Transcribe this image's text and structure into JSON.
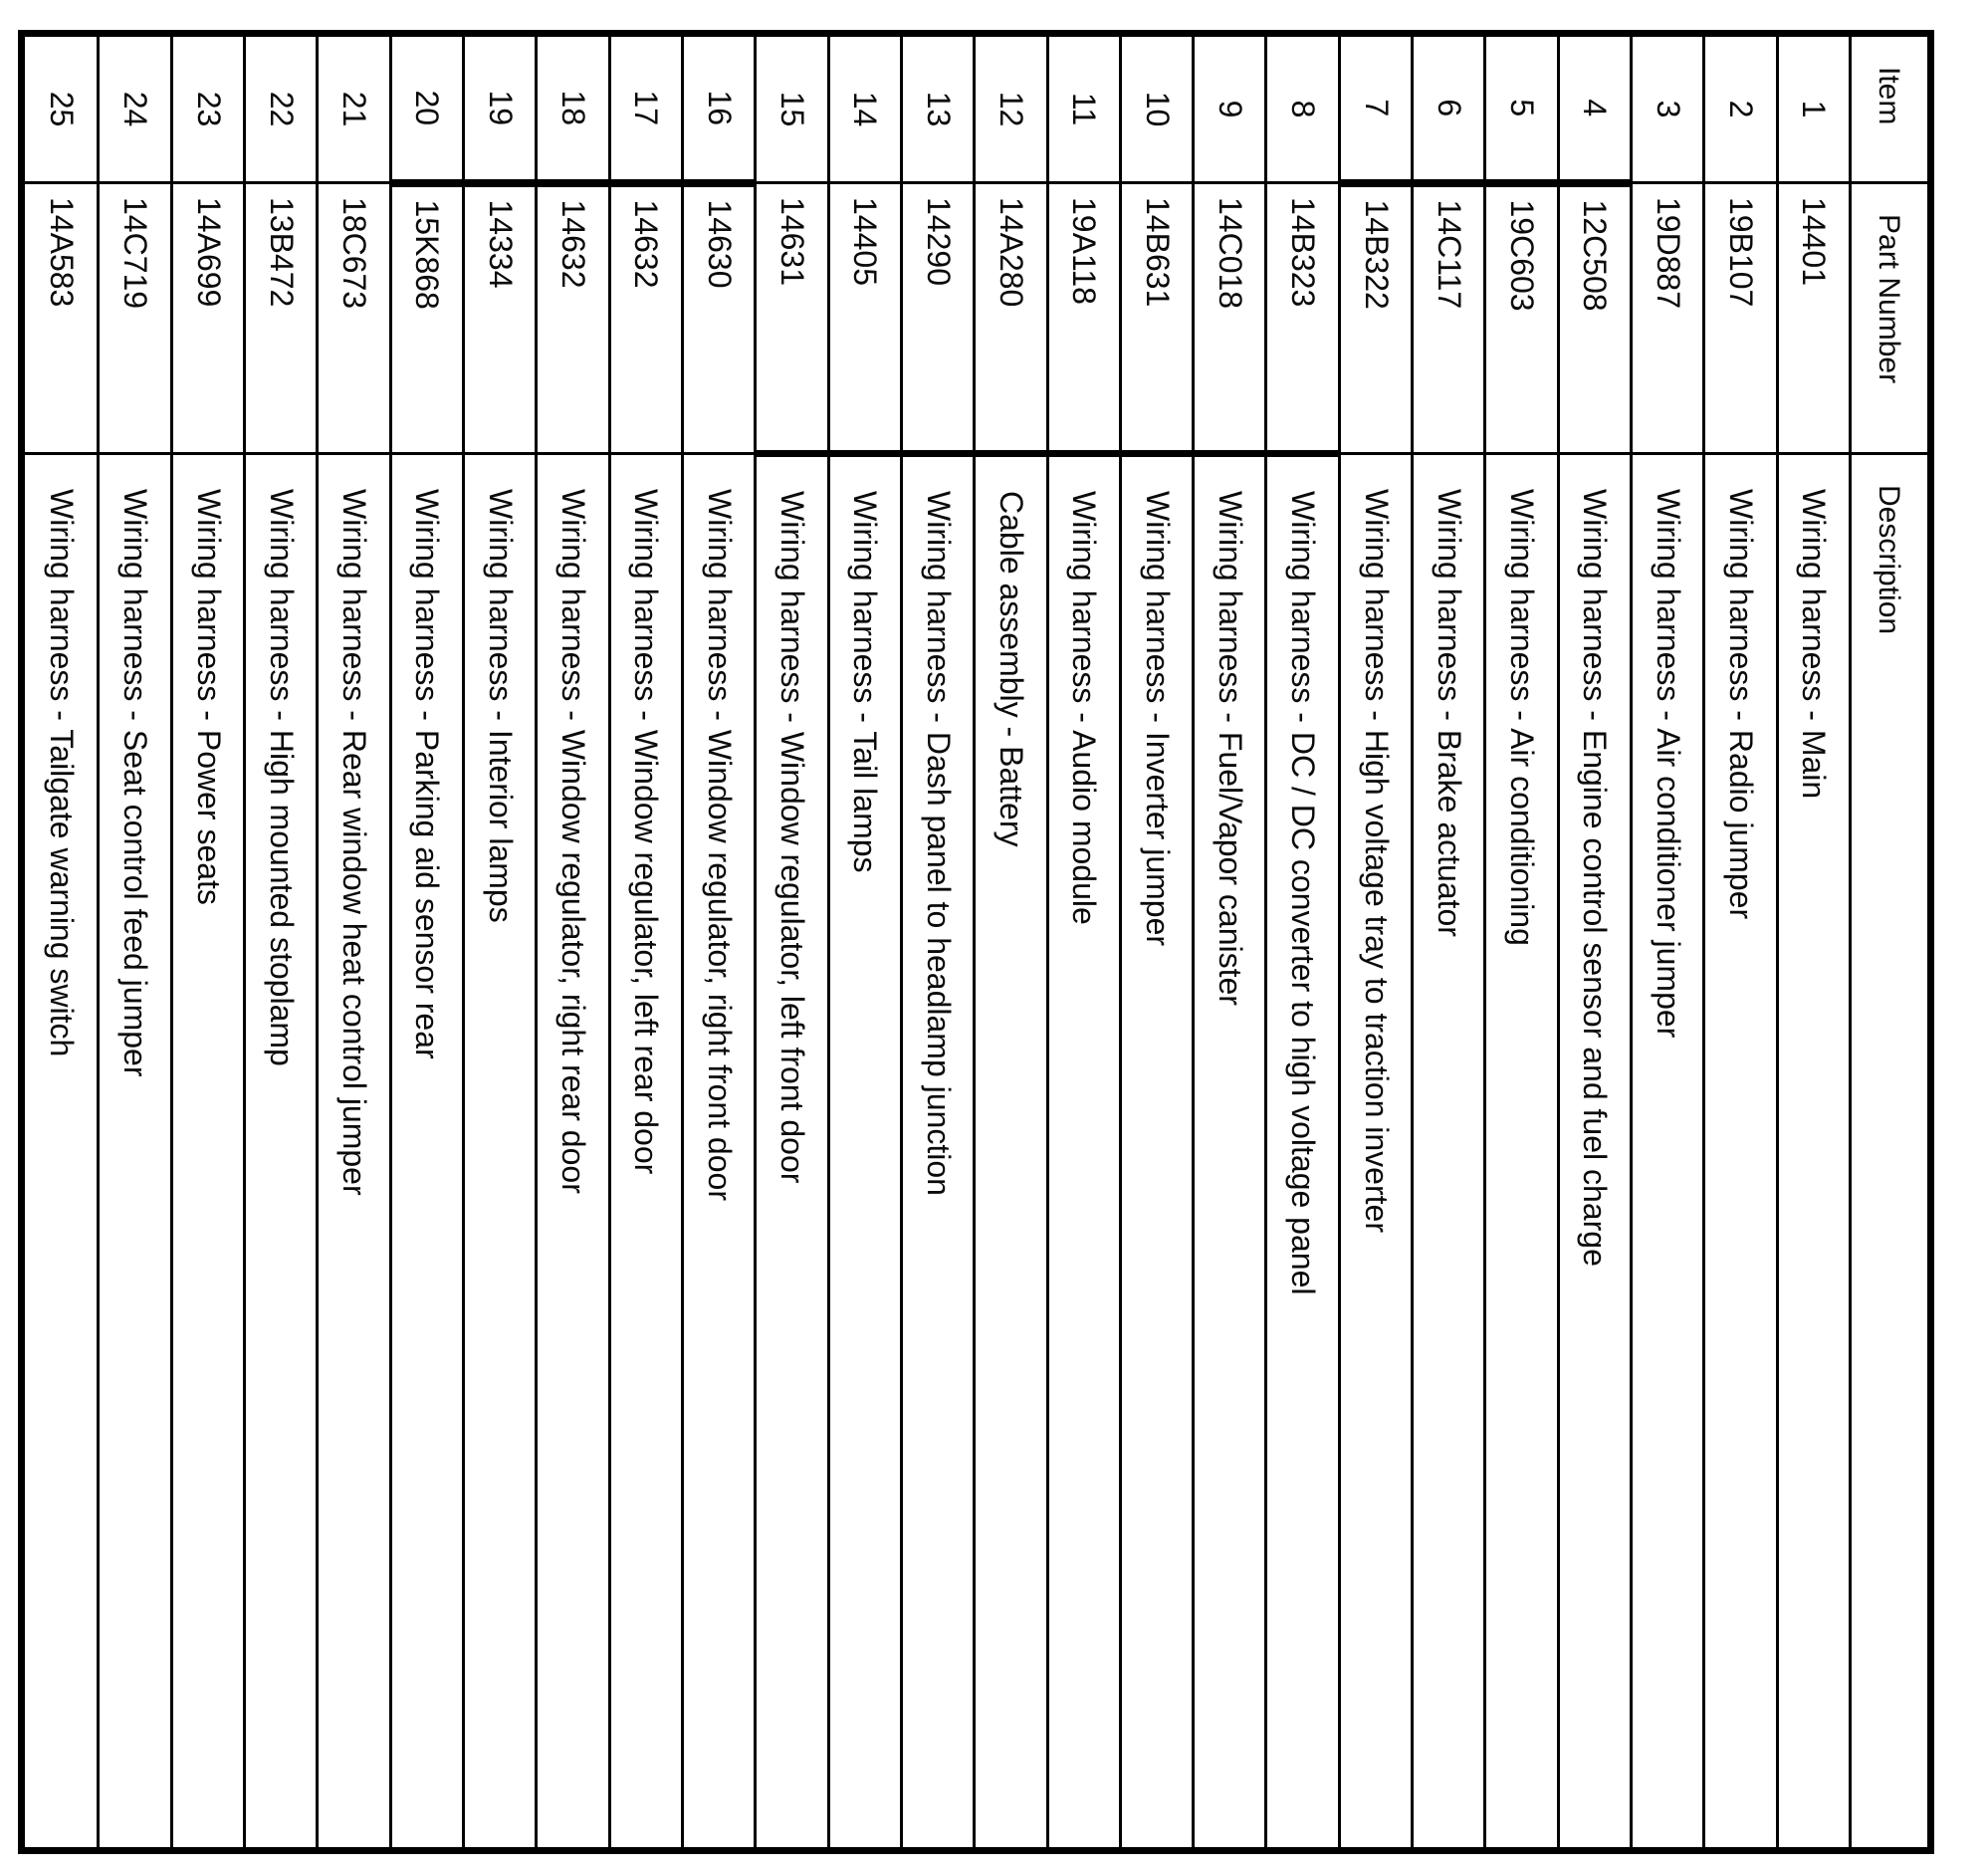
{
  "page": {
    "background": "#ffffff",
    "ink": "#0a0a0a"
  },
  "table": {
    "columns": [
      "Item",
      "Part Number",
      "Description"
    ],
    "rows": [
      {
        "item": "1",
        "part_number": "14401",
        "description": "Wiring harness - Main"
      },
      {
        "item": "2",
        "part_number": "19B107",
        "description": "Wiring harness - Radio jumper"
      },
      {
        "item": "3",
        "part_number": "19D887",
        "description": "Wiring harness - Air conditioner jumper"
      },
      {
        "item": "4",
        "part_number": "12C508",
        "description": "Wiring harness - Engine control sensor and fuel charge"
      },
      {
        "item": "5",
        "part_number": "19C603",
        "description": "Wiring harness - Air conditioning"
      },
      {
        "item": "6",
        "part_number": "14C117",
        "description": "Wiring harness - Brake actuator"
      },
      {
        "item": "7",
        "part_number": "14B322",
        "description": "Wiring harness - High voltage tray to traction inverter"
      },
      {
        "item": "8",
        "part_number": "14B323",
        "description": "Wiring harness - DC / DC converter to high voltage panel"
      },
      {
        "item": "9",
        "part_number": "14C018",
        "description": "Wiring harness - Fuel/Vapor canister"
      },
      {
        "item": "10",
        "part_number": "14B631",
        "description": "Wiring harness - Inverter jumper"
      },
      {
        "item": "11",
        "part_number": "19A118",
        "description": "Wiring harness - Audio module"
      },
      {
        "item": "12",
        "part_number": "14A280",
        "description": "Cable assembly - Battery"
      },
      {
        "item": "13",
        "part_number": "14290",
        "description": "Wiring harness - Dash panel to headlamp junction"
      },
      {
        "item": "14",
        "part_number": "14405",
        "description": "Wiring harness - Tail lamps"
      },
      {
        "item": "15",
        "part_number": "14631",
        "description": "Wiring harness - Window regulator, left front door"
      },
      {
        "item": "16",
        "part_number": "14630",
        "description": "Wiring harness - Window regulator, right front door"
      },
      {
        "item": "17",
        "part_number": "14632",
        "description": "Wiring harness - Window regulator, left rear door"
      },
      {
        "item": "18",
        "part_number": "14632",
        "description": "Wiring harness - Window regulator, right rear door"
      },
      {
        "item": "19",
        "part_number": "14334",
        "description": "Wiring harness - Interior lamps"
      },
      {
        "item": "20",
        "part_number": "15K868",
        "description": "Wiring harness - Parking aid sensor rear"
      },
      {
        "item": "21",
        "part_number": "18C673",
        "description": "Wiring harness - Rear window heat control jumper"
      },
      {
        "item": "22",
        "part_number": "13B472",
        "description": "Wiring harness - High mounted stoplamp"
      },
      {
        "item": "23",
        "part_number": "14A699",
        "description": "Wiring harness - Power seats"
      },
      {
        "item": "24",
        "part_number": "14C719",
        "description": "Wiring harness - Seat control feed jumper"
      },
      {
        "item": "25",
        "part_number": "14A583",
        "description": "Wiring harness - Tailgate warning switch"
      }
    ]
  }
}
